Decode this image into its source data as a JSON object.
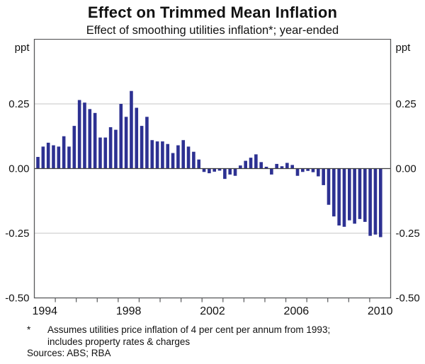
{
  "header": {
    "title": "Effect on Trimmed Mean Inflation",
    "subtitle": "Effect of smoothing utilities inflation*; year-ended"
  },
  "footnote": {
    "marker": "*",
    "line1": "Assumes utilities price inflation of 4 per cent per annum from 1993;",
    "line2": "includes property rates & charges",
    "sources": "Sources: ABS; RBA"
  },
  "chart_data": {
    "type": "bar",
    "title": "Effect on Trimmed Mean Inflation",
    "subtitle": "Effect of smoothing utilities inflation*; year-ended",
    "unit_left": "ppt",
    "unit_right": "ppt",
    "ylim": [
      -0.5,
      0.5
    ],
    "y_ticks": [
      {
        "v": 0.25,
        "label": "0.25"
      },
      {
        "v": 0.0,
        "label": "0.00"
      },
      {
        "v": -0.25,
        "label": "-0.25"
      },
      {
        "v": -0.5,
        "label": "-0.50"
      }
    ],
    "y_gridlines": [
      0.25,
      -0.25
    ],
    "x_start_year": 1994,
    "x_end_year": 2011,
    "x_minor_ticks": [
      1995,
      1996,
      1997,
      1998,
      1999,
      2000,
      2001,
      2002,
      2003,
      2004,
      2005,
      2006,
      2007,
      2008,
      2009,
      2010
    ],
    "x_labeled_years": [
      1994,
      1998,
      2002,
      2006,
      2010
    ],
    "frequency": "quarterly",
    "start_quarter": "1994Q1",
    "end_quarter": "2010Q3",
    "bar_color": "#2d3192",
    "grid_color": "#c6c6c6",
    "frame_color": "#58595b",
    "zero_line_color": "#3c3c3e",
    "values": [
      0.045,
      0.085,
      0.1,
      0.09,
      0.085,
      0.125,
      0.085,
      0.165,
      0.265,
      0.255,
      0.23,
      0.215,
      0.12,
      0.12,
      0.16,
      0.15,
      0.25,
      0.2,
      0.3,
      0.235,
      0.165,
      0.2,
      0.11,
      0.105,
      0.105,
      0.095,
      0.06,
      0.09,
      0.11,
      0.085,
      0.065,
      0.035,
      -0.013,
      -0.018,
      -0.012,
      -0.008,
      -0.04,
      -0.023,
      -0.028,
      0.012,
      0.03,
      0.042,
      0.055,
      0.025,
      0.007,
      -0.023,
      0.018,
      0.009,
      0.022,
      0.014,
      -0.028,
      -0.013,
      -0.009,
      -0.014,
      -0.03,
      -0.064,
      -0.14,
      -0.185,
      -0.22,
      -0.225,
      -0.2,
      -0.213,
      -0.195,
      -0.206,
      -0.26,
      -0.255,
      -0.265
    ]
  }
}
